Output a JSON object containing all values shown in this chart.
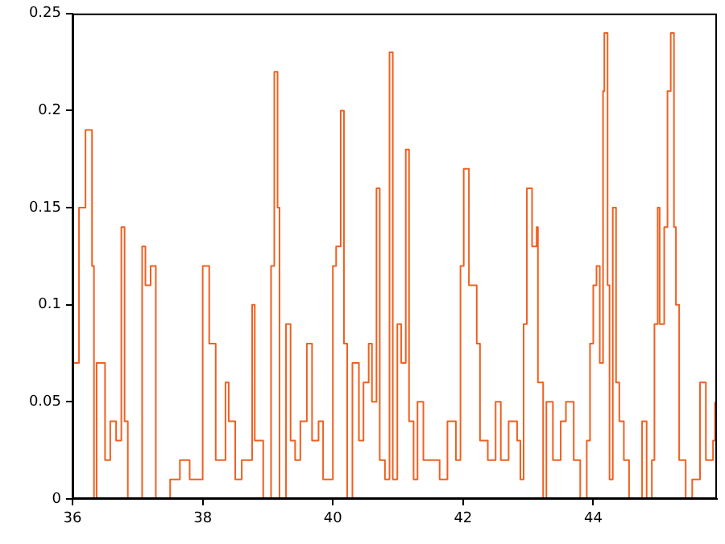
{
  "chart_data": {
    "type": "step",
    "x": [
      36.0,
      36.1,
      36.2,
      36.3,
      36.33,
      36.37,
      36.5,
      36.58,
      36.67,
      36.75,
      36.8,
      36.85,
      37.07,
      37.12,
      37.2,
      37.28,
      37.5,
      37.65,
      37.8,
      38.0,
      38.05,
      38.1,
      38.2,
      38.35,
      38.4,
      38.5,
      38.6,
      38.76,
      38.8,
      38.93,
      39.05,
      39.1,
      39.15,
      39.18,
      39.28,
      39.35,
      39.42,
      39.5,
      39.6,
      39.68,
      39.78,
      39.85,
      40.0,
      40.05,
      40.12,
      40.17,
      40.22,
      40.3,
      40.4,
      40.47,
      40.55,
      40.6,
      40.67,
      40.72,
      40.8,
      40.87,
      40.92,
      40.99,
      41.05,
      41.12,
      41.17,
      41.24,
      41.3,
      41.39,
      41.52,
      41.64,
      41.76,
      41.89,
      41.96,
      42.01,
      42.09,
      42.16,
      42.21,
      42.26,
      42.38,
      42.5,
      42.58,
      42.7,
      42.83,
      42.88,
      42.93,
      42.98,
      43.06,
      43.13,
      43.15,
      43.23,
      43.28,
      43.38,
      43.5,
      43.58,
      43.7,
      43.8,
      43.9,
      43.95,
      44.0,
      44.05,
      44.1,
      44.15,
      44.17,
      44.22,
      44.25,
      44.3,
      44.35,
      44.4,
      44.47,
      44.55,
      44.65,
      44.75,
      44.82,
      44.9,
      44.94,
      44.99,
      45.02,
      45.09,
      45.14,
      45.19,
      45.24,
      45.27,
      45.32,
      45.42,
      45.52,
      45.64,
      45.73,
      45.84,
      45.87
    ],
    "series": [
      {
        "color": "#f06020",
        "values": [
          0.07,
          0.15,
          0.19,
          0.12,
          0.0,
          0.07,
          0.02,
          0.04,
          0.03,
          0.14,
          0.04,
          0.0,
          0.13,
          0.11,
          0.12,
          0.0,
          0.01,
          0.02,
          0.01,
          0.12,
          0.12,
          0.08,
          0.02,
          0.06,
          0.04,
          0.01,
          0.02,
          0.1,
          0.03,
          0.0,
          0.12,
          0.22,
          0.15,
          0.0,
          0.09,
          0.03,
          0.02,
          0.04,
          0.08,
          0.03,
          0.04,
          0.01,
          0.12,
          0.13,
          0.2,
          0.08,
          0.0,
          0.07,
          0.03,
          0.06,
          0.08,
          0.05,
          0.16,
          0.02,
          0.01,
          0.23,
          0.01,
          0.09,
          0.07,
          0.18,
          0.04,
          0.01,
          0.05,
          0.02,
          0.02,
          0.01,
          0.04,
          0.02,
          0.12,
          0.17,
          0.11,
          0.11,
          0.08,
          0.03,
          0.02,
          0.05,
          0.02,
          0.04,
          0.03,
          0.01,
          0.09,
          0.16,
          0.13,
          0.14,
          0.06,
          0.0,
          0.05,
          0.02,
          0.04,
          0.05,
          0.02,
          0.0,
          0.03,
          0.08,
          0.11,
          0.12,
          0.07,
          0.21,
          0.24,
          0.11,
          0.01,
          0.15,
          0.06,
          0.04,
          0.02,
          0.0,
          0.0,
          0.04,
          0.0,
          0.02,
          0.09,
          0.15,
          0.09,
          0.14,
          0.21,
          0.24,
          0.14,
          0.1,
          0.02,
          0.0,
          0.01,
          0.06,
          0.02,
          0.03,
          0.05
        ]
      }
    ],
    "xlim": [
      36,
      45.9
    ],
    "xticks": [
      36,
      38,
      40,
      42,
      44
    ],
    "ylim": [
      0,
      0.25
    ],
    "yticks": [
      0,
      0.05,
      0.1,
      0.15,
      0.2,
      0.25
    ],
    "grid": false,
    "legend": false,
    "marker": "none",
    "line_style": "solid"
  }
}
